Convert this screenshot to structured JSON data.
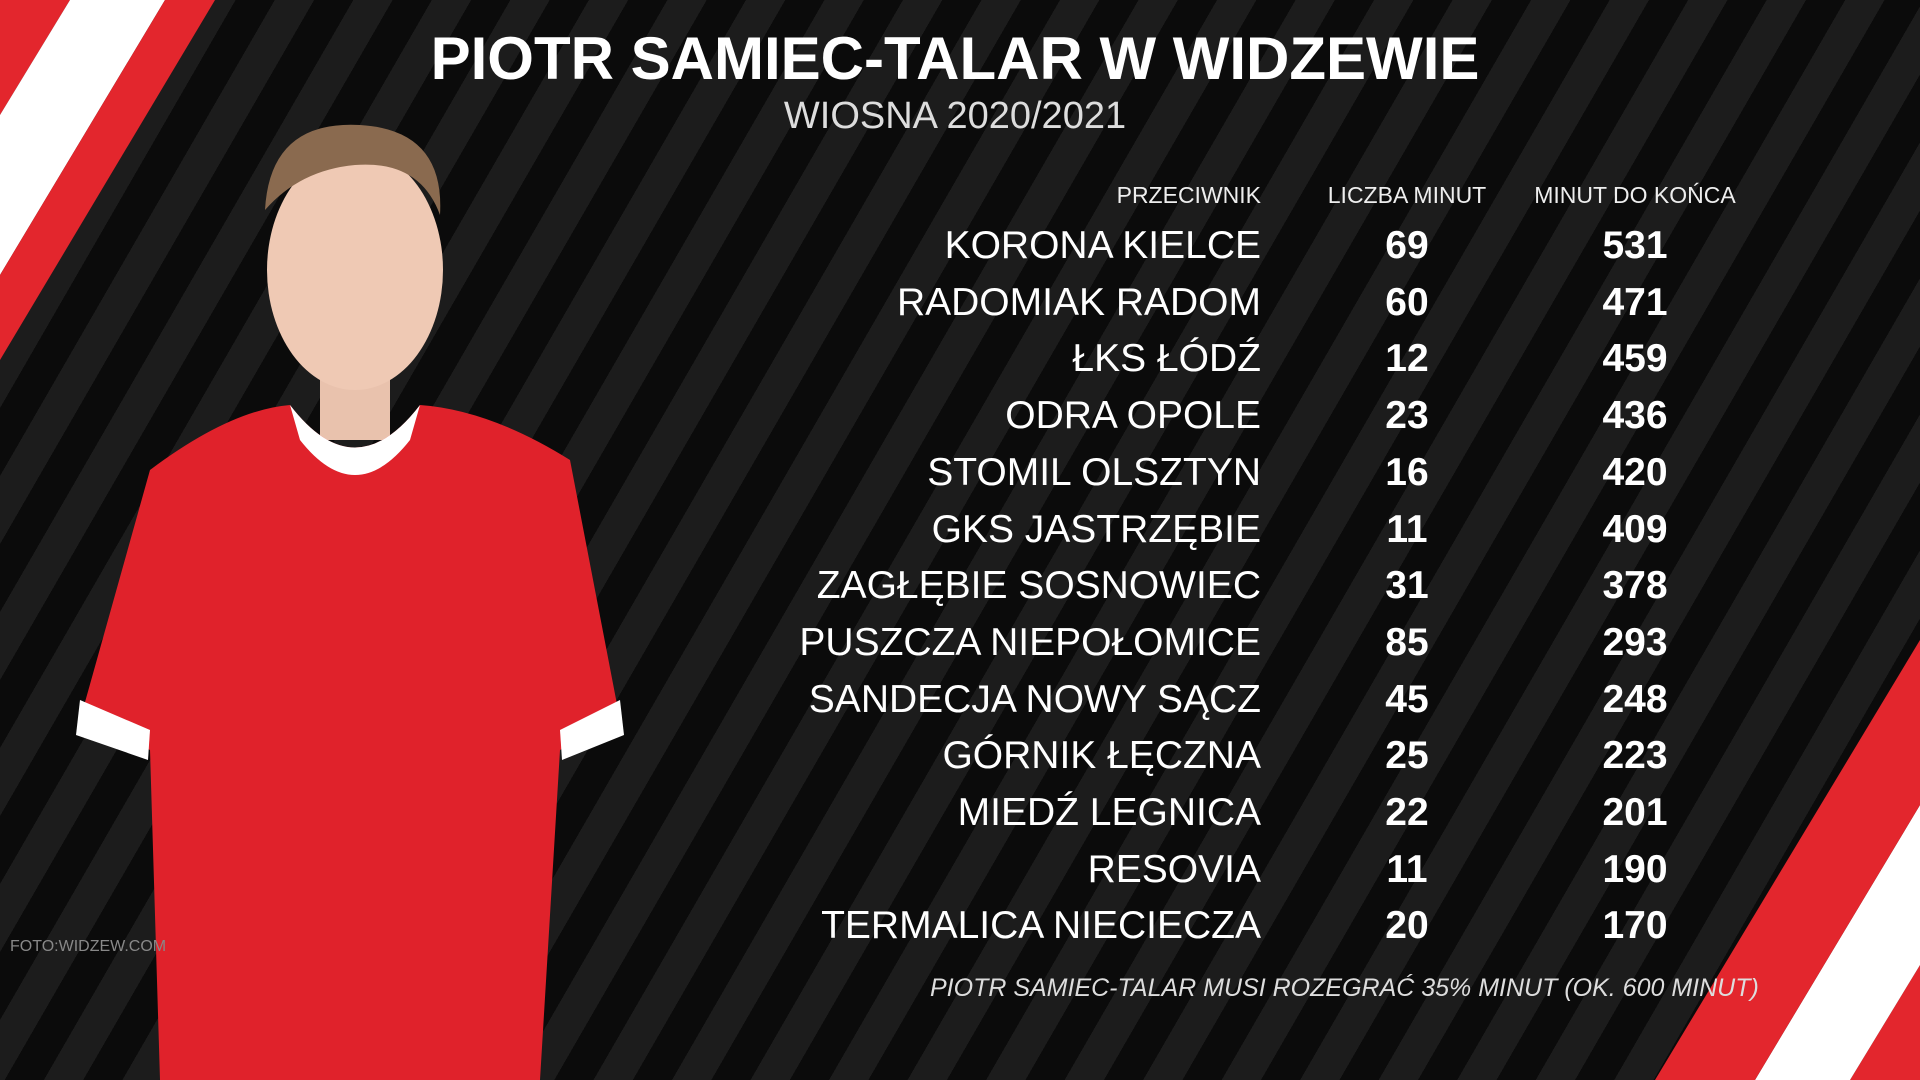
{
  "header": {
    "title": "PIOTR SAMIEC-TALAR W WIDZEWIE",
    "subtitle": "WIOSNA 2020/2021"
  },
  "table": {
    "columns": [
      "PRZECIWNIK",
      "LICZBA MINUT",
      "MINUT DO KOŃCA"
    ],
    "rows": [
      [
        "KORONA KIELCE",
        69,
        531
      ],
      [
        "RADOMIAK RADOM",
        60,
        471
      ],
      [
        "ŁKS ŁÓDŹ",
        12,
        459
      ],
      [
        "ODRA OPOLE",
        23,
        436
      ],
      [
        "STOMIL OLSZTYN",
        16,
        420
      ],
      [
        "GKS JASTRZĘBIE",
        11,
        409
      ],
      [
        "ZAGŁĘBIE SOSNOWIEC",
        31,
        378
      ],
      [
        "PUSZCZA NIEPOŁOMICE",
        85,
        293
      ],
      [
        "SANDECJA NOWY SĄCZ",
        45,
        248
      ],
      [
        "GÓRNIK ŁĘCZNA",
        25,
        223
      ],
      [
        "MIEDŹ LEGNICA",
        22,
        201
      ],
      [
        "RESOVIA",
        11,
        190
      ],
      [
        "TERMALICA NIECIECZA",
        20,
        170
      ]
    ]
  },
  "footnote": "PIOTR SAMIEC-TALAR MUSI ROZEGRAĆ 35% MINUT (OK. 600 MINUT)",
  "photo_credit": "FOTO:WIDZEW.COM"
}
